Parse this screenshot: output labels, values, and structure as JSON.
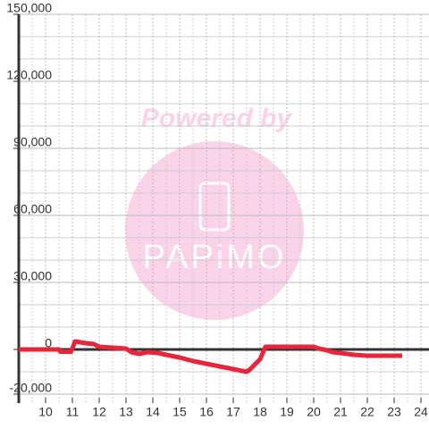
{
  "chart_data": {
    "type": "line",
    "watermark": {
      "caption": "Powered by",
      "logo": "PAPiMO"
    },
    "x": [
      9.0,
      10.5,
      10.55,
      10.95,
      11.1,
      11.5,
      11.8,
      12.0,
      12.5,
      13.0,
      13.2,
      13.5,
      13.8,
      14.2,
      14.5,
      15.0,
      15.5,
      16.0,
      16.5,
      17.0,
      17.5,
      17.6,
      18.0,
      18.2,
      19.0,
      20.0,
      20.2,
      20.5,
      20.7,
      21.0,
      21.5,
      22.0,
      23.3
    ],
    "series": [
      {
        "color": "#e8253a",
        "values": [
          0,
          0,
          -1000,
          -1000,
          3600,
          2800,
          2400,
          1200,
          800,
          400,
          -1200,
          -2000,
          -1200,
          -1600,
          -2400,
          -3600,
          -5200,
          -6400,
          -7600,
          -8800,
          -10000,
          -9200,
          -4400,
          1200,
          1200,
          1200,
          400,
          -400,
          -1200,
          -1600,
          -2400,
          -2800,
          -2800
        ]
      }
    ],
    "xlim": [
      9,
      24.3
    ],
    "xticks": [
      10,
      11,
      12,
      13,
      14,
      15,
      16,
      17,
      18,
      19,
      20,
      21,
      22,
      23,
      24
    ],
    "xminor": [
      9.5,
      10.5,
      11.5,
      12.5,
      13.5,
      14.5,
      15.5,
      16.5,
      17.5,
      18.5,
      19.5,
      20.5,
      21.5,
      22.5,
      23.5
    ],
    "ylim": [
      -24000,
      150000
    ],
    "yticks": [
      {
        "value": -20000,
        "label": "-20,000"
      },
      0,
      {
        "value": 30000,
        "label": "30,000"
      },
      {
        "value": 60000,
        "label": "60,000"
      },
      {
        "value": 90000,
        "label": "90,000"
      },
      {
        "value": 120000,
        "label": "120,000"
      },
      {
        "value": 150000,
        "label": "150,000"
      }
    ],
    "yminor": [
      -10000,
      10000,
      20000,
      40000,
      50000,
      70000,
      80000,
      100000,
      110000,
      130000,
      140000
    ],
    "grid": true
  }
}
